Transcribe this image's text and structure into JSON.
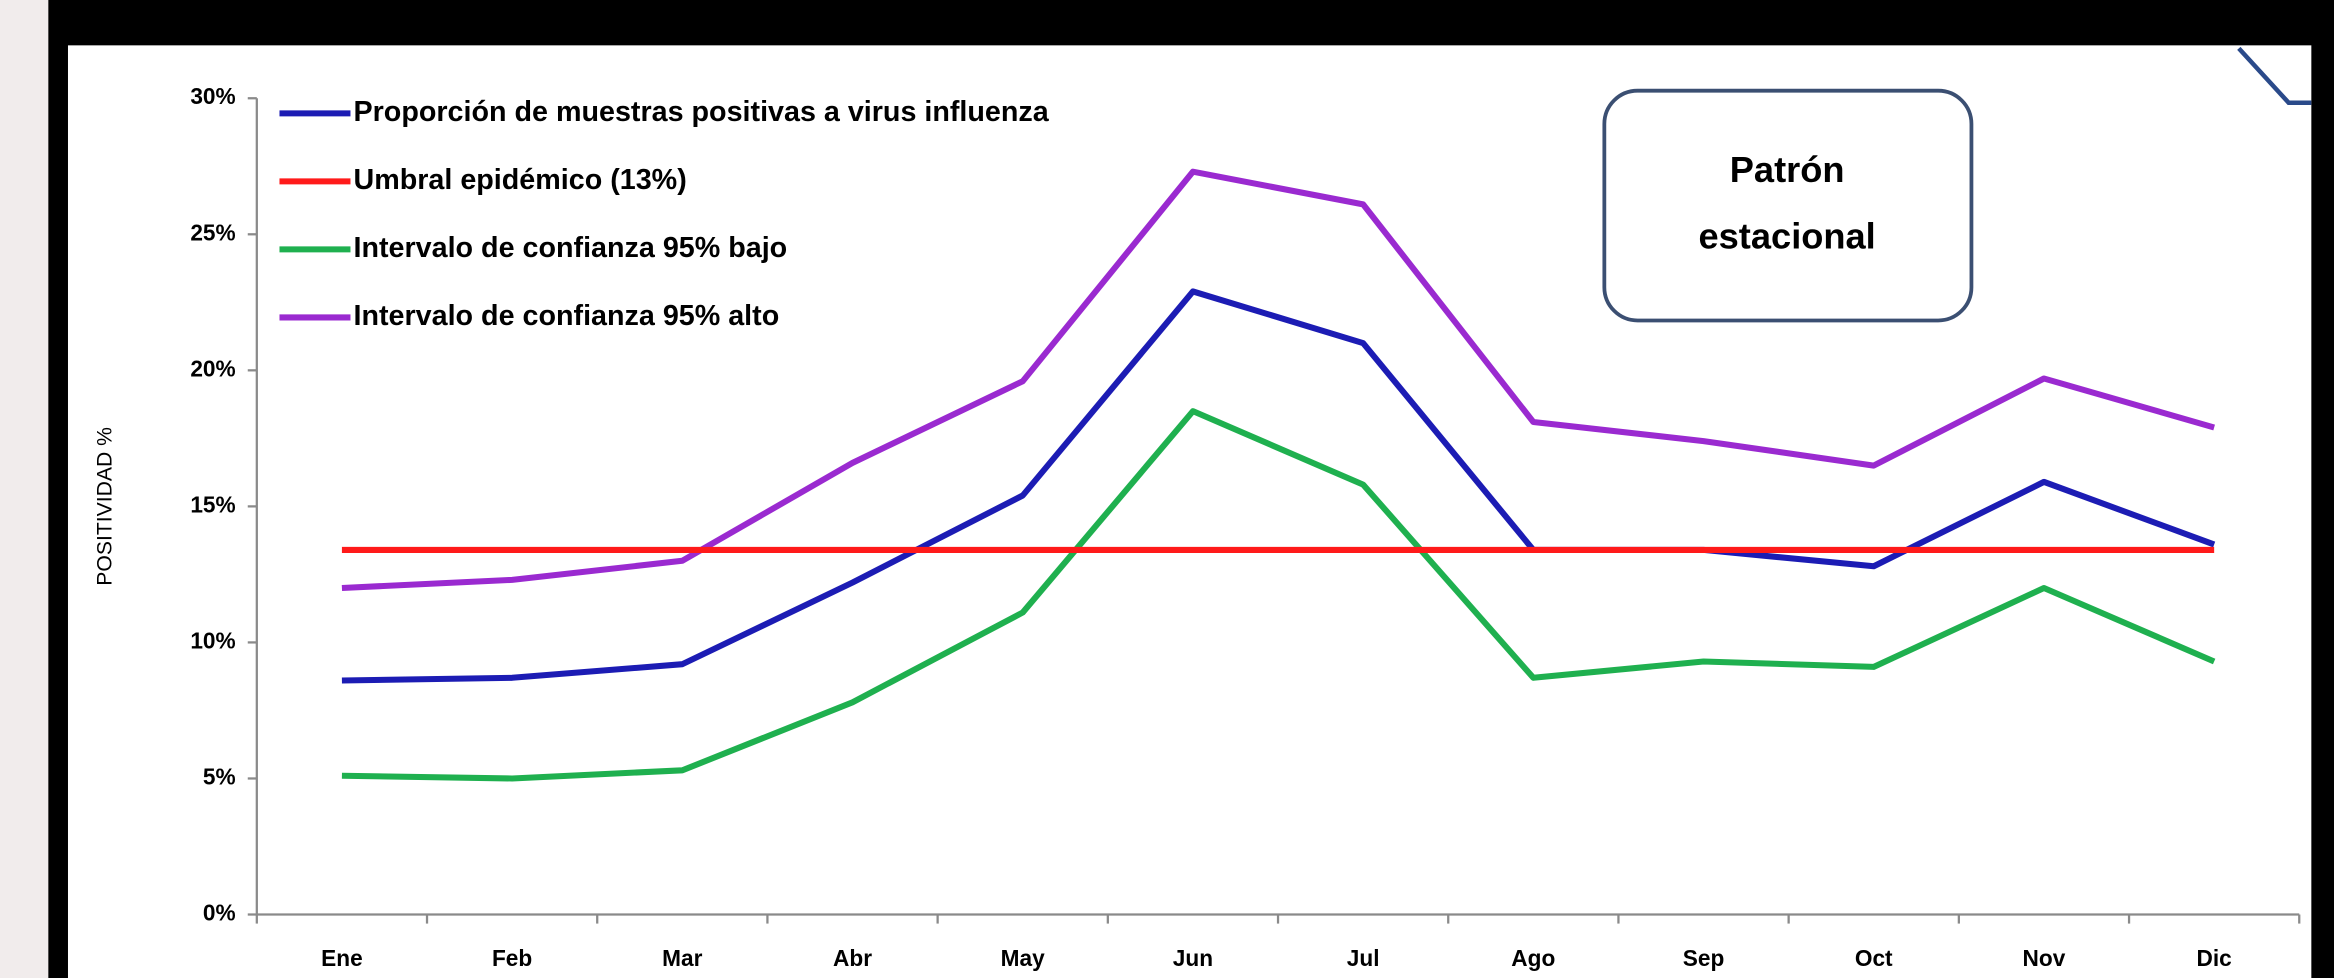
{
  "chart_data": {
    "type": "line",
    "y_label": "POSITIVIDAD %",
    "annotation": [
      "Patrón",
      "estacional"
    ],
    "categories": [
      "Ene",
      "Feb",
      "Mar",
      "Abr",
      "May",
      "Jun",
      "Jul",
      "Ago",
      "Sep",
      "Oct",
      "Nov",
      "Dic"
    ],
    "series": [
      {
        "name": "Proporción de muestras positivas a virus influenza",
        "color": "#1c1cb4",
        "values": [
          8.6,
          8.7,
          9.2,
          12.2,
          15.4,
          22.9,
          21.0,
          13.4,
          13.4,
          12.8,
          15.9,
          13.6
        ]
      },
      {
        "name": "Umbral epidémico (13%)",
        "color": "#ff1a1a",
        "values": [
          13.4,
          13.4,
          13.4,
          13.4,
          13.4,
          13.4,
          13.4,
          13.4,
          13.4,
          13.4,
          13.4,
          13.4
        ]
      },
      {
        "name": "Intervalo de confianza 95% bajo",
        "color": "#1fb04f",
        "values": [
          5.1,
          5.0,
          5.3,
          7.8,
          11.1,
          18.5,
          15.8,
          8.7,
          9.3,
          9.1,
          12.0,
          9.3
        ]
      },
      {
        "name": "Intervalo de confianza 95% alto",
        "color": "#9a2ad0",
        "values": [
          12.0,
          12.3,
          13.0,
          16.6,
          19.6,
          27.3,
          26.1,
          18.1,
          17.4,
          16.5,
          19.7,
          17.9
        ]
      }
    ],
    "ylim": [
      0,
      30
    ],
    "yticks": [
      {
        "value": 0,
        "label": "0%"
      },
      {
        "value": 5,
        "label": "5%"
      },
      {
        "value": 10,
        "label": "10%"
      },
      {
        "value": 15,
        "label": "15%"
      },
      {
        "value": 20,
        "label": "20%"
      },
      {
        "value": 25,
        "label": "25%"
      },
      {
        "value": 30,
        "label": "30%"
      }
    ],
    "grid": false
  }
}
